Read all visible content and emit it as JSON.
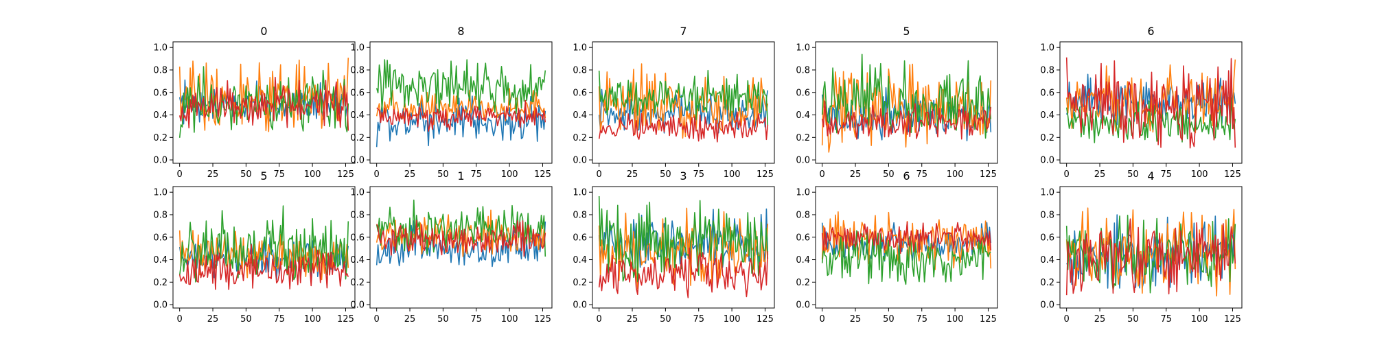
{
  "figure": {
    "palette": [
      "#1f77b4",
      "#ff7f0e",
      "#2ca02c",
      "#d62728"
    ]
  },
  "chart_data": [
    {
      "type": "line",
      "title": "0",
      "xlim": [
        -5,
        132
      ],
      "ylim": [
        -0.03,
        1.05
      ],
      "xticks": [
        0,
        25,
        50,
        75,
        100,
        125
      ],
      "yticks": [
        0.0,
        0.2,
        0.4,
        0.6,
        0.8,
        1.0
      ],
      "x_length": 128,
      "series_bands": [
        [
          0.3,
          0.72
        ],
        [
          0.2,
          0.95
        ],
        [
          0.15,
          0.88
        ],
        [
          0.25,
          0.75
        ]
      ]
    },
    {
      "type": "line",
      "title": "8",
      "xlim": [
        -5,
        132
      ],
      "ylim": [
        -0.03,
        1.05
      ],
      "xticks": [
        0,
        25,
        50,
        75,
        100,
        125
      ],
      "yticks": [
        0.0,
        0.2,
        0.4,
        0.6,
        0.8,
        1.0
      ],
      "x_length": 128,
      "series_bands": [
        [
          0.1,
          0.6
        ],
        [
          0.3,
          0.65
        ],
        [
          0.35,
          0.95
        ],
        [
          0.25,
          0.55
        ]
      ]
    },
    {
      "type": "line",
      "title": "7",
      "xlim": [
        -5,
        132
      ],
      "ylim": [
        -0.03,
        1.05
      ],
      "xticks": [
        0,
        25,
        50,
        75,
        100,
        125
      ],
      "yticks": [
        0.0,
        0.2,
        0.4,
        0.6,
        0.8,
        1.0
      ],
      "x_length": 128,
      "series_bands": [
        [
          0.2,
          0.65
        ],
        [
          0.15,
          0.9
        ],
        [
          0.3,
          0.85
        ],
        [
          0.15,
          0.45
        ]
      ]
    },
    {
      "type": "line",
      "title": "5",
      "xlim": [
        -5,
        132
      ],
      "ylim": [
        -0.03,
        1.05
      ],
      "xticks": [
        0,
        25,
        50,
        75,
        100,
        125
      ],
      "yticks": [
        0.0,
        0.2,
        0.4,
        0.6,
        0.8,
        1.0
      ],
      "x_length": 128,
      "series_bands": [
        [
          0.15,
          0.65
        ],
        [
          0.05,
          0.95
        ],
        [
          0.15,
          0.95
        ],
        [
          0.15,
          0.55
        ]
      ]
    },
    {
      "type": "line",
      "title": "6",
      "xlim": [
        -5,
        132
      ],
      "ylim": [
        -0.03,
        1.05
      ],
      "xticks": [
        0,
        25,
        50,
        75,
        100,
        125
      ],
      "yticks": [
        0.0,
        0.2,
        0.4,
        0.6,
        0.8,
        1.0
      ],
      "x_length": 128,
      "series_bands": [
        [
          0.25,
          0.8
        ],
        [
          0.2,
          0.9
        ],
        [
          0.1,
          0.6
        ],
        [
          0.05,
          0.95
        ]
      ]
    },
    {
      "type": "line",
      "title": "5",
      "xlim": [
        -5,
        132
      ],
      "ylim": [
        -0.03,
        1.05
      ],
      "xticks": [
        0,
        25,
        50,
        75,
        100,
        125
      ],
      "yticks": [
        0.0,
        0.2,
        0.4,
        0.6,
        0.8,
        1.0
      ],
      "x_length": 128,
      "series_bands": [
        [
          0.2,
          0.65
        ],
        [
          0.2,
          0.7
        ],
        [
          0.15,
          0.9
        ],
        [
          0.1,
          0.55
        ]
      ]
    },
    {
      "type": "line",
      "title": "1",
      "xlim": [
        -5,
        132
      ],
      "ylim": [
        -0.03,
        1.05
      ],
      "xticks": [
        0,
        25,
        50,
        75,
        100,
        125
      ],
      "yticks": [
        0.0,
        0.2,
        0.4,
        0.6,
        0.8,
        1.0
      ],
      "x_length": 128,
      "series_bands": [
        [
          0.3,
          0.75
        ],
        [
          0.4,
          0.85
        ],
        [
          0.4,
          0.95
        ],
        [
          0.4,
          0.8
        ]
      ]
    },
    {
      "type": "line",
      "title": "3",
      "xlim": [
        -5,
        132
      ],
      "ylim": [
        -0.03,
        1.05
      ],
      "xticks": [
        0,
        25,
        50,
        75,
        100,
        125
      ],
      "yticks": [
        0.0,
        0.2,
        0.4,
        0.6,
        0.8,
        1.0
      ],
      "x_length": 128,
      "series_bands": [
        [
          0.3,
          0.9
        ],
        [
          0.1,
          0.9
        ],
        [
          0.15,
          0.98
        ],
        [
          0.05,
          0.55
        ]
      ]
    },
    {
      "type": "line",
      "title": "6",
      "xlim": [
        -5,
        132
      ],
      "ylim": [
        -0.03,
        1.05
      ],
      "xticks": [
        0,
        25,
        50,
        75,
        100,
        125
      ],
      "yticks": [
        0.0,
        0.2,
        0.4,
        0.6,
        0.8,
        1.0
      ],
      "x_length": 128,
      "series_bands": [
        [
          0.35,
          0.75
        ],
        [
          0.3,
          0.9
        ],
        [
          0.15,
          0.7
        ],
        [
          0.45,
          0.75
        ]
      ]
    },
    {
      "type": "line",
      "title": "4",
      "xlim": [
        -5,
        132
      ],
      "ylim": [
        -0.03,
        1.05
      ],
      "xticks": [
        0,
        25,
        50,
        75,
        100,
        125
      ],
      "yticks": [
        0.0,
        0.2,
        0.4,
        0.6,
        0.8,
        1.0
      ],
      "x_length": 128,
      "series_bands": [
        [
          0.05,
          0.9
        ],
        [
          0.05,
          0.95
        ],
        [
          0.05,
          0.85
        ],
        [
          0.05,
          0.9
        ]
      ]
    }
  ]
}
